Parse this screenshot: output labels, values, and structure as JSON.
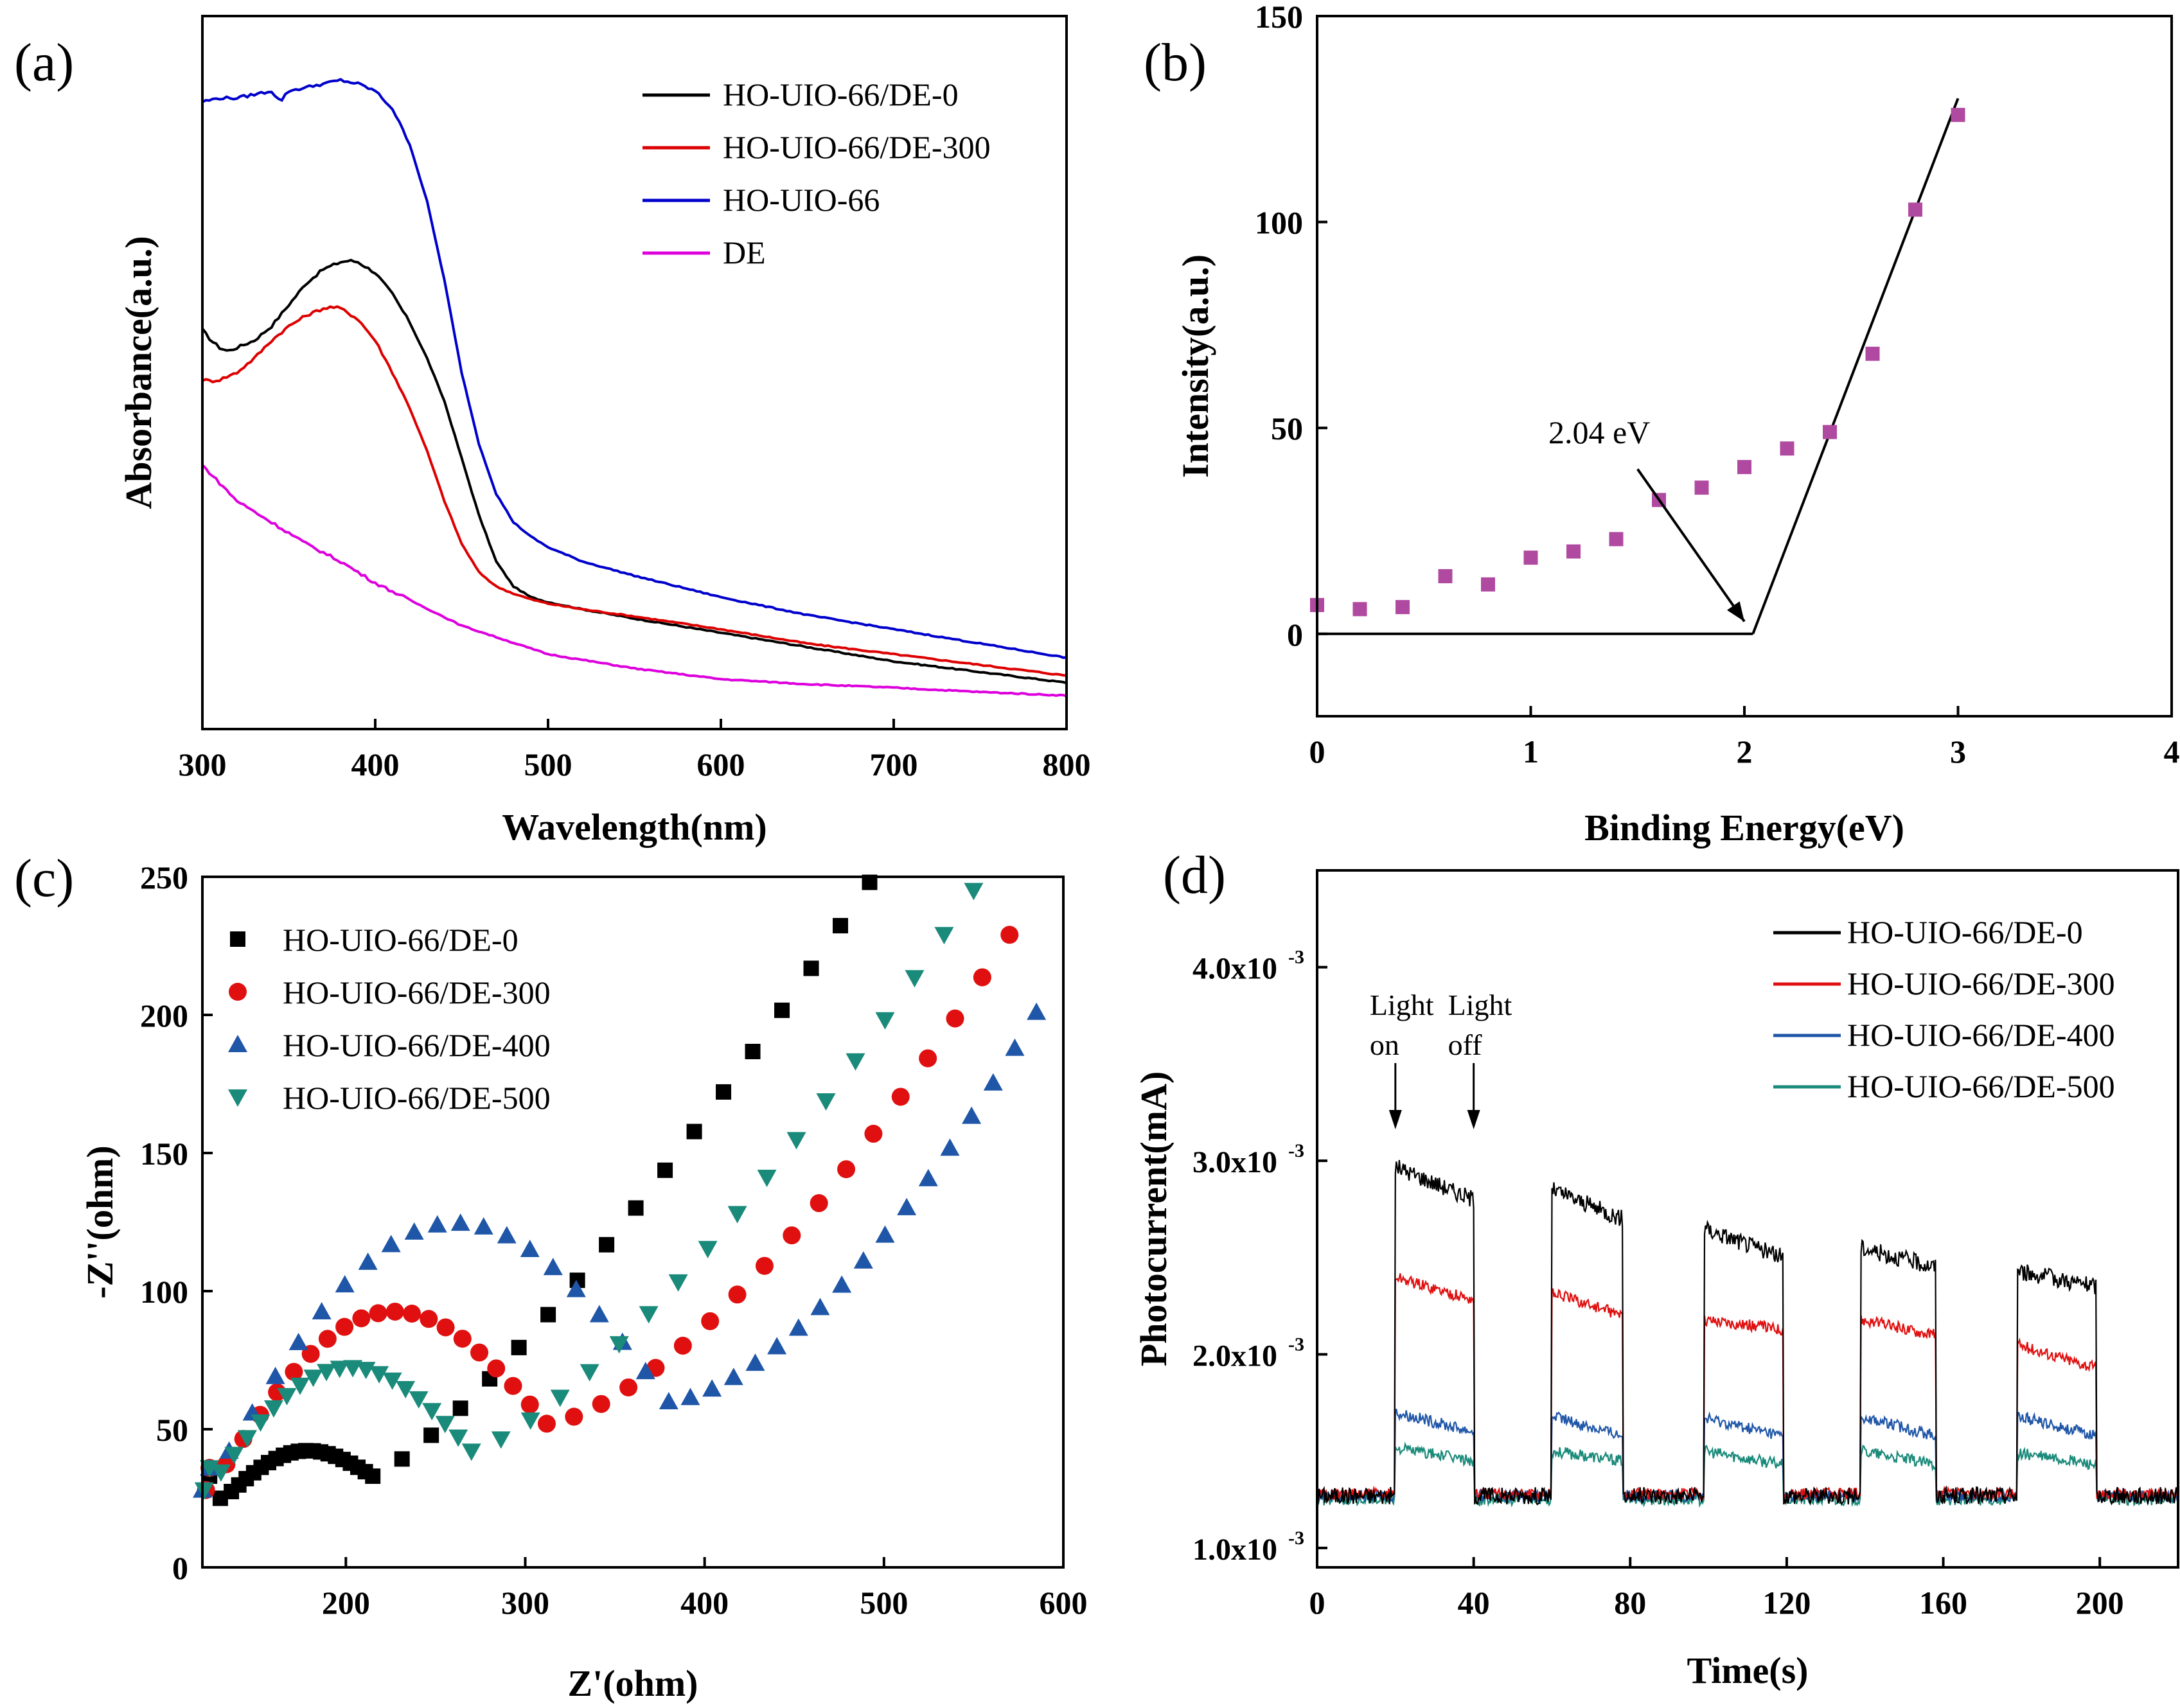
{
  "figure": {
    "description_free": true
  },
  "chart_data": [
    {
      "id": "a",
      "type": "line",
      "panel_label": "(a)",
      "xlabel": "Wavelength(nm)",
      "ylabel": "Absorbance(a.u.)",
      "xlim": [
        300,
        800
      ],
      "ylim": [
        0,
        1
      ],
      "xticks": [
        300,
        400,
        500,
        600,
        700,
        800
      ],
      "yticks": [],
      "legend_position": "top-right",
      "series": [
        {
          "name": "HO-UIO-66/DE-0",
          "color": "#000000",
          "x": [
            300,
            305,
            310,
            315,
            320,
            330,
            340,
            350,
            360,
            370,
            380,
            385,
            390,
            400,
            410,
            420,
            430,
            440,
            450,
            460,
            470,
            480,
            490,
            500,
            520,
            550,
            600,
            650,
            700,
            750,
            800
          ],
          "y": [
            0.56,
            0.545,
            0.535,
            0.53,
            0.535,
            0.545,
            0.565,
            0.595,
            0.625,
            0.645,
            0.655,
            0.657,
            0.655,
            0.64,
            0.61,
            0.57,
            0.52,
            0.46,
            0.38,
            0.3,
            0.235,
            0.2,
            0.185,
            0.178,
            0.168,
            0.155,
            0.135,
            0.115,
            0.095,
            0.08,
            0.065
          ]
        },
        {
          "name": "HO-UIO-66/DE-300",
          "color": "#dd0000",
          "x": [
            300,
            305,
            310,
            320,
            330,
            340,
            350,
            360,
            370,
            375,
            380,
            390,
            400,
            410,
            420,
            430,
            440,
            450,
            460,
            470,
            480,
            490,
            500,
            520,
            550,
            600,
            650,
            700,
            750,
            800
          ],
          "y": [
            0.49,
            0.488,
            0.49,
            0.5,
            0.52,
            0.545,
            0.565,
            0.58,
            0.59,
            0.592,
            0.59,
            0.575,
            0.545,
            0.5,
            0.45,
            0.39,
            0.32,
            0.26,
            0.22,
            0.2,
            0.19,
            0.182,
            0.176,
            0.168,
            0.158,
            0.14,
            0.12,
            0.105,
            0.09,
            0.075
          ]
        },
        {
          "name": "HO-UIO-66",
          "color": "#0000cc",
          "x": [
            300,
            310,
            320,
            330,
            340,
            345,
            350,
            360,
            370,
            380,
            390,
            400,
            410,
            420,
            430,
            440,
            450,
            460,
            470,
            480,
            490,
            500,
            520,
            550,
            600,
            650,
            700,
            750,
            800
          ],
          "y": [
            0.88,
            0.885,
            0.885,
            0.89,
            0.895,
            0.88,
            0.895,
            0.9,
            0.905,
            0.91,
            0.905,
            0.895,
            0.87,
            0.82,
            0.74,
            0.63,
            0.5,
            0.4,
            0.33,
            0.29,
            0.27,
            0.255,
            0.235,
            0.215,
            0.185,
            0.16,
            0.14,
            0.12,
            0.1
          ]
        },
        {
          "name": "DE",
          "color": "#dd00dd",
          "x": [
            300,
            310,
            320,
            340,
            360,
            380,
            400,
            450,
            500,
            550,
            600,
            650,
            700,
            750,
            800
          ],
          "y": [
            0.37,
            0.345,
            0.32,
            0.29,
            0.26,
            0.235,
            0.205,
            0.145,
            0.105,
            0.085,
            0.07,
            0.063,
            0.058,
            0.052,
            0.047
          ]
        }
      ]
    },
    {
      "id": "b",
      "type": "scatter",
      "panel_label": "(b)",
      "xlabel": "Binding Energy(eV)",
      "ylabel": "Intensity(a.u.)",
      "xlim": [
        0,
        4
      ],
      "ylim": [
        -20,
        150
      ],
      "xticks": [
        0,
        1,
        2,
        3,
        4
      ],
      "yticks": [
        0,
        50,
        100,
        150
      ],
      "points": {
        "color": "#b04aa0",
        "x": [
          0.0,
          0.2,
          0.4,
          0.6,
          0.8,
          1.0,
          1.2,
          1.4,
          1.6,
          1.8,
          2.0,
          2.2,
          2.4,
          2.6,
          2.8,
          3.0
        ],
        "y": [
          7,
          6,
          6.5,
          14,
          12,
          18.5,
          20,
          23,
          32.5,
          35.5,
          40.5,
          45,
          49,
          68,
          103,
          126
        ]
      },
      "baseline": {
        "x": [
          0,
          2.04
        ],
        "y": [
          0,
          0
        ]
      },
      "fit_line": {
        "x": [
          2.04,
          3.0
        ],
        "y": [
          0,
          130
        ]
      },
      "annotation": {
        "text": "2.04 eV",
        "arrow_from": [
          1.5,
          40
        ],
        "arrow_to": [
          2.0,
          3
        ]
      }
    },
    {
      "id": "c",
      "type": "scatter",
      "panel_label": "(c)",
      "xlabel": "Z'(ohm)",
      "ylabel": "-Z''(ohm)",
      "xlim": [
        120,
        600
      ],
      "ylim": [
        0,
        250
      ],
      "xticks": [
        200,
        300,
        400,
        500,
        600
      ],
      "yticks": [
        0,
        50,
        100,
        150,
        200,
        250
      ],
      "legend_position": "top-left",
      "series": [
        {
          "name": "HO-UIO-66/DE-0",
          "color": "#000000",
          "marker": "square",
          "cx": 178,
          "r": 46,
          "y0": 25,
          "min_x": 215,
          "min_y": 33,
          "tail_end": [
            492,
            248
          ],
          "tail_power": 1.25
        },
        {
          "name": "HO-UIO-66/DE-300",
          "color": "#e01010",
          "marker": "circle",
          "cx": 220,
          "r": 96,
          "y0": 28,
          "min_x": 312,
          "min_y": 52,
          "tail_end": [
            570,
            229
          ],
          "tail_power": 1.5
        },
        {
          "name": "HO-UIO-66/DE-400",
          "color": "#1f56a8",
          "marker": "triangle-up",
          "cx": 250,
          "r": 128,
          "y0": 28,
          "min_x": 380,
          "min_y": 60,
          "tail_end": [
            585,
            201
          ],
          "tail_power": 1.6
        },
        {
          "name": "HO-UIO-66/DE-500",
          "color": "#1a8a7a",
          "marker": "triangle-down",
          "cx": 200,
          "r": 77,
          "y0": 28,
          "min_x": 270,
          "min_y": 42,
          "tail_end": [
            550,
            245
          ],
          "tail_power": 1.35
        }
      ]
    },
    {
      "id": "d",
      "type": "line",
      "panel_label": "(d)",
      "xlabel": "Time(s)",
      "ylabel": "Photocurrent(mA)",
      "xlim": [
        0,
        220
      ],
      "ylim": [
        0.0009,
        0.0045
      ],
      "xticks": [
        0,
        40,
        80,
        120,
        160,
        200
      ],
      "yticks": [
        0.001,
        0.002,
        0.003,
        0.004
      ],
      "ytick_labels": [
        "1.0x10",
        "2.0x10",
        "3.0x10",
        "4.0x10"
      ],
      "ytick_exponent": "-3",
      "legend_position": "top-right",
      "annotations": [
        {
          "text_line1": "Light",
          "text_line2": "on",
          "x": 20
        },
        {
          "text_line1": "Light",
          "text_line2": "off",
          "x": 40
        }
      ],
      "on_intervals": [
        [
          20,
          40
        ],
        [
          60,
          78
        ],
        [
          99,
          119
        ],
        [
          139,
          158
        ],
        [
          179,
          199
        ]
      ],
      "series": [
        {
          "name": "HO-UIO-66/DE-0",
          "color": "#000000",
          "dark": 0.00127,
          "on_start": [
            0.00297,
            0.00285,
            0.00265,
            0.00255,
            0.00243
          ],
          "on_end": [
            0.0028,
            0.0027,
            0.0025,
            0.00245,
            0.00235
          ]
        },
        {
          "name": "HO-UIO-66/DE-300",
          "color": "#e01010",
          "dark": 0.00128,
          "on_start": [
            0.0024,
            0.00232,
            0.00218,
            0.00218,
            0.00205
          ],
          "on_end": [
            0.00228,
            0.0022,
            0.00213,
            0.0021,
            0.00193
          ]
        },
        {
          "name": "HO-UIO-66/DE-400",
          "color": "#1f56a8",
          "dark": 0.00127,
          "on_start": [
            0.0017,
            0.00168,
            0.00167,
            0.00168,
            0.00168
          ],
          "on_end": [
            0.0016,
            0.00158,
            0.00158,
            0.00158,
            0.00158
          ]
        },
        {
          "name": "HO-UIO-66/DE-500",
          "color": "#1a8a7a",
          "dark": 0.00125,
          "on_start": [
            0.00152,
            0.0015,
            0.0015,
            0.0015,
            0.00149
          ],
          "on_end": [
            0.00145,
            0.00145,
            0.00143,
            0.00143,
            0.00143
          ]
        }
      ]
    }
  ]
}
